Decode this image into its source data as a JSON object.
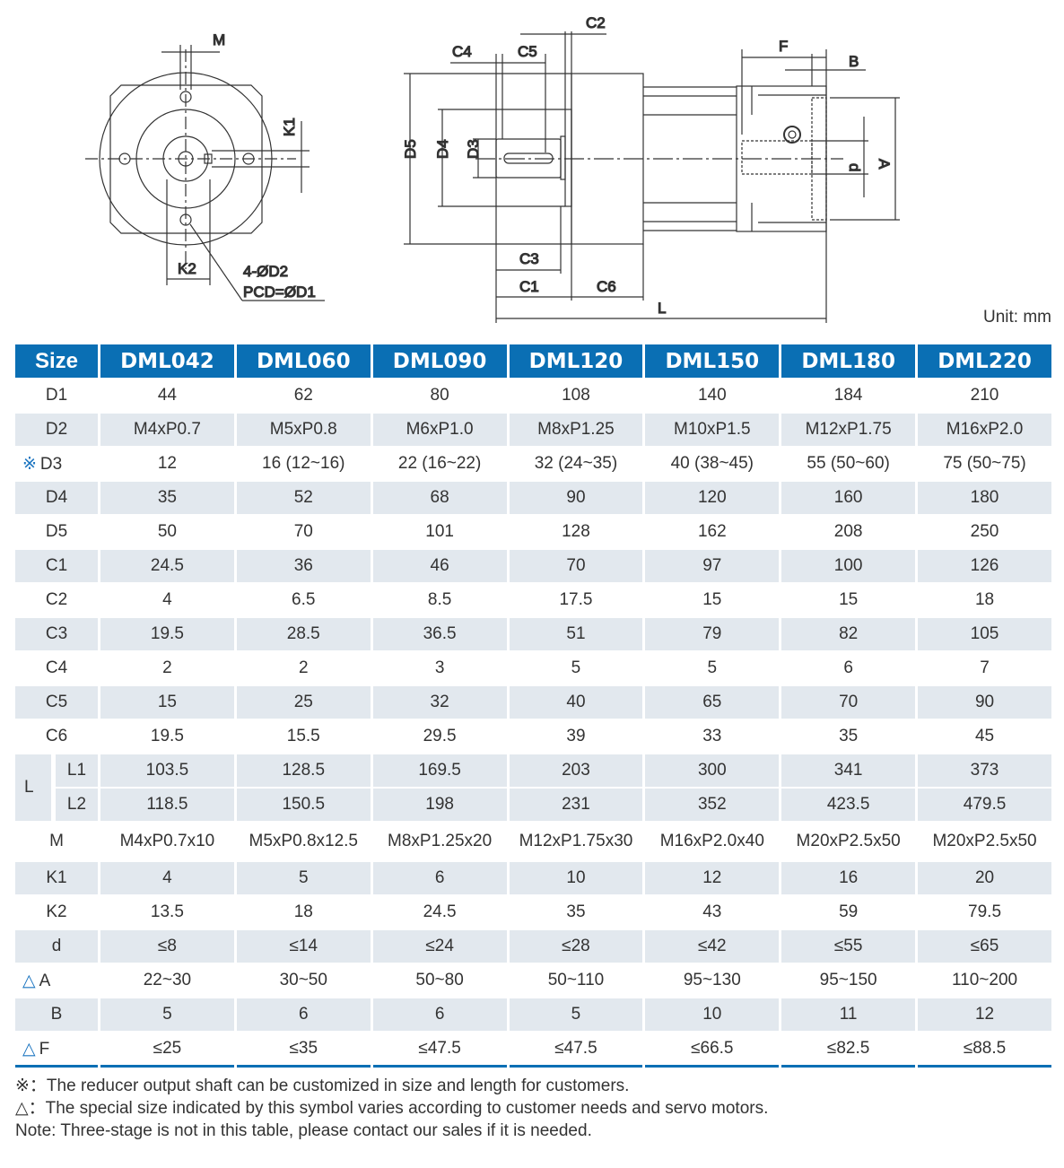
{
  "drawing": {
    "labels": {
      "M": "M",
      "K1": "K1",
      "K2": "K2",
      "hole": "4-ØD2",
      "pcd": "PCD=ØD1",
      "C2": "C2",
      "C4": "C4",
      "C5": "C5",
      "F": "F",
      "B": "B",
      "D5": "D5",
      "D4": "D4",
      "D3": "D3",
      "d": "d",
      "A": "A",
      "C3": "C3",
      "C1": "C1",
      "C6": "C6",
      "L": "L"
    }
  },
  "unit": "Unit: mm",
  "table": {
    "headers": [
      "Size",
      "DML042",
      "DML060",
      "DML090",
      "DML120",
      "DML150",
      "DML180",
      "DML220"
    ],
    "rows": [
      {
        "label": "D1",
        "values": [
          "44",
          "62",
          "80",
          "108",
          "140",
          "184",
          "210"
        ]
      },
      {
        "label": "D2",
        "values": [
          "M4xP0.7",
          "M5xP0.8",
          "M6xP1.0",
          "M8xP1.25",
          "M10xP1.5",
          "M12xP1.75",
          "M16xP2.0"
        ]
      },
      {
        "label": "D3",
        "mark": "※",
        "values": [
          "12",
          "16 (12~16)",
          "22 (16~22)",
          "32 (24~35)",
          "40 (38~45)",
          "55 (50~60)",
          "75 (50~75)"
        ]
      },
      {
        "label": "D4",
        "values": [
          "35",
          "52",
          "68",
          "90",
          "120",
          "160",
          "180"
        ]
      },
      {
        "label": "D5",
        "values": [
          "50",
          "70",
          "101",
          "128",
          "162",
          "208",
          "250"
        ]
      },
      {
        "label": "C1",
        "values": [
          "24.5",
          "36",
          "46",
          "70",
          "97",
          "100",
          "126"
        ]
      },
      {
        "label": "C2",
        "values": [
          "4",
          "6.5",
          "8.5",
          "17.5",
          "15",
          "15",
          "18"
        ]
      },
      {
        "label": "C3",
        "values": [
          "19.5",
          "28.5",
          "36.5",
          "51",
          "79",
          "82",
          "105"
        ]
      },
      {
        "label": "C4",
        "values": [
          "2",
          "2",
          "3",
          "5",
          "5",
          "6",
          "7"
        ]
      },
      {
        "label": "C5",
        "values": [
          "15",
          "25",
          "32",
          "40",
          "65",
          "70",
          "90"
        ]
      },
      {
        "label": "C6",
        "values": [
          "19.5",
          "15.5",
          "29.5",
          "39",
          "33",
          "35",
          "45"
        ]
      },
      {
        "group": "L",
        "label": "L1",
        "values": [
          "103.5",
          "128.5",
          "169.5",
          "203",
          "300",
          "341",
          "373"
        ]
      },
      {
        "label": "L2",
        "values": [
          "118.5",
          "150.5",
          "198",
          "231",
          "352",
          "423.5",
          "479.5"
        ]
      },
      {
        "label": "M",
        "values": [
          "M4xP0.7x10",
          "M5xP0.8x12.5",
          "M8xP1.25x20",
          "M12xP1.75x30",
          "M16xP2.0x40",
          "M20xP2.5x50",
          "M20xP2.5x50"
        ]
      },
      {
        "label": "K1",
        "values": [
          "4",
          "5",
          "6",
          "10",
          "12",
          "16",
          "20"
        ]
      },
      {
        "label": "K2",
        "values": [
          "13.5",
          "18",
          "24.5",
          "35",
          "43",
          "59",
          "79.5"
        ]
      },
      {
        "label": "d",
        "values": [
          "≤8",
          "≤14",
          "≤24",
          "≤28",
          "≤42",
          "≤55",
          "≤65"
        ]
      },
      {
        "label": "A",
        "mark": "△",
        "values": [
          "22~30",
          "30~50",
          "50~80",
          "50~110",
          "95~130",
          "95~150",
          "110~200"
        ]
      },
      {
        "label": "B",
        "values": [
          "5",
          "6",
          "6",
          "5",
          "10",
          "11",
          "12"
        ]
      },
      {
        "label": "F",
        "mark": "△",
        "values": [
          "≤25",
          "≤35",
          "≤47.5",
          "≤47.5",
          "≤66.5",
          "≤82.5",
          "≤88.5"
        ]
      }
    ]
  },
  "notes": [
    "※：The reducer output shaft can be customized in size and length for customers.",
    "△：The special size indicated by this symbol varies according to customer needs and servo motors.",
    "Note: Three-stage is not in this table, please contact our sales if it is needed."
  ],
  "colors": {
    "header": "#0a6fb4",
    "stripe": "#e2e8ee",
    "mark": "#1a74c0"
  }
}
